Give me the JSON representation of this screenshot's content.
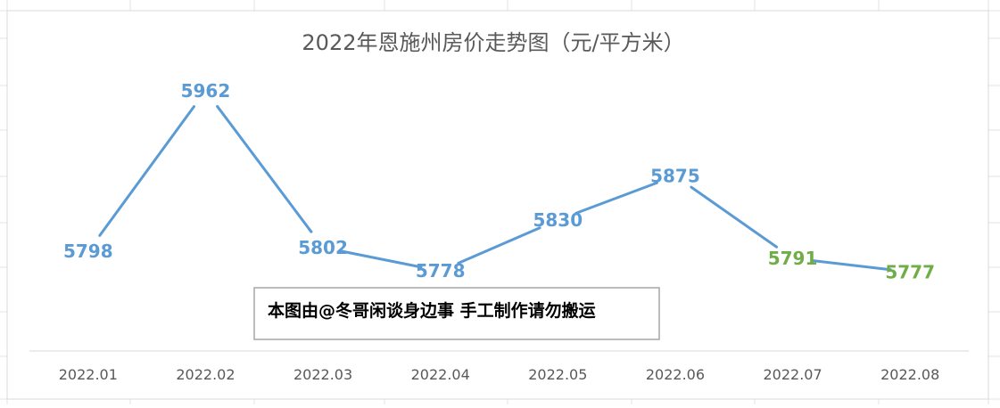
{
  "chart_data": {
    "type": "line",
    "title": "2022年恩施州房价走势图（元/平方米）",
    "categories": [
      "2022.01",
      "2022.02",
      "2022.03",
      "2022.04",
      "2022.05",
      "2022.06",
      "2022.07",
      "2022.08"
    ],
    "series": [
      {
        "values": [
          5798,
          5962,
          5802,
          5778,
          5830,
          5875,
          5791,
          5777
        ],
        "color": "#5B9BD5"
      }
    ],
    "data_label_colors": [
      "#5B9BD5",
      "#5B9BD5",
      "#5B9BD5",
      "#5B9BD5",
      "#5B9BD5",
      "#5B9BD5",
      "#70AD47",
      "#70AD47"
    ],
    "ylim": [
      5700,
      6000
    ],
    "grid": false,
    "legend": "none",
    "annotation": "本图由@冬哥闲谈身边事 手工制作请勿搬运"
  }
}
